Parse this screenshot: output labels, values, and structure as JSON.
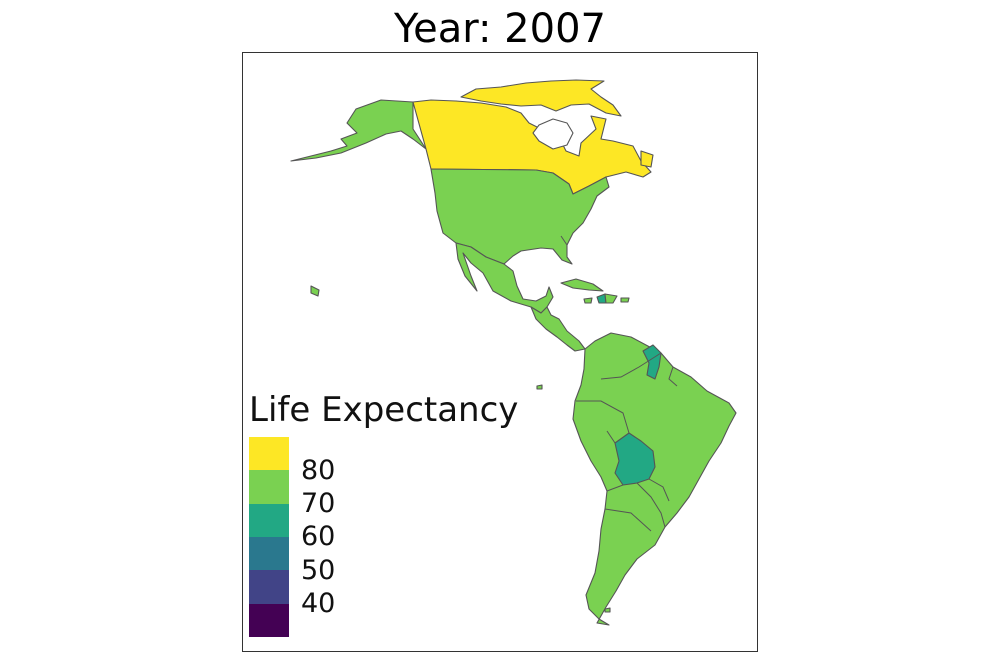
{
  "title": "Year: 2007",
  "legend": {
    "title": "Life Expectancy",
    "ticks": [
      "80",
      "70",
      "60",
      "50",
      "40"
    ],
    "colors": [
      "#fde725",
      "#7ad151",
      "#22a884",
      "#2a788e",
      "#414487",
      "#440154"
    ]
  },
  "regions": [
    {
      "name": "Canada",
      "value": 80.7,
      "color": "#fde725"
    },
    {
      "name": "Alaska",
      "value": 78.2,
      "color": "#7ad151"
    },
    {
      "name": "United States",
      "value": 78.2,
      "color": "#7ad151"
    },
    {
      "name": "Mexico",
      "value": 76.2,
      "color": "#7ad151"
    },
    {
      "name": "Central America",
      "value": 72.5,
      "color": "#7ad151"
    },
    {
      "name": "Caribbean",
      "value": 74.0,
      "color": "#7ad151"
    },
    {
      "name": "Haiti",
      "value": 60.9,
      "color": "#22a884"
    },
    {
      "name": "South America",
      "value": 73.0,
      "color": "#7ad151"
    },
    {
      "name": "Bolivia",
      "value": 65.6,
      "color": "#22a884"
    },
    {
      "name": "Guyana",
      "value": 66.0,
      "color": "#22a884"
    },
    {
      "name": "Greenland (no data)",
      "value": null,
      "color": "#ffffff"
    }
  ],
  "colors": {
    "border": "#555555",
    "background": "#ffffff"
  }
}
